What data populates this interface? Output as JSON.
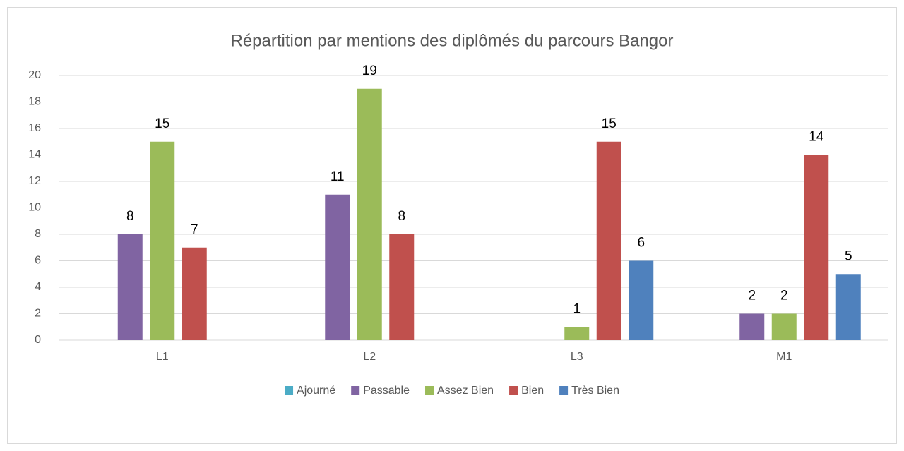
{
  "chart_data": {
    "type": "bar",
    "title": "Répartition par mentions des diplômés du parcours Bangor",
    "categories": [
      "L1",
      "L2",
      "L3",
      "M1"
    ],
    "series": [
      {
        "name": "Ajourné",
        "color": "#4bacc6",
        "values": [
          null,
          null,
          null,
          null
        ]
      },
      {
        "name": "Passable",
        "color": "#8064a2",
        "values": [
          8,
          11,
          null,
          2
        ]
      },
      {
        "name": "Assez Bien",
        "color": "#9bbb59",
        "values": [
          15,
          19,
          1,
          2
        ]
      },
      {
        "name": "Bien",
        "color": "#c0504d",
        "values": [
          7,
          8,
          15,
          14
        ]
      },
      {
        "name": "Très Bien",
        "color": "#4f81bd",
        "values": [
          null,
          null,
          6,
          5
        ]
      }
    ],
    "ylim": [
      0,
      20
    ],
    "yticks": [
      0,
      2,
      4,
      6,
      8,
      10,
      12,
      14,
      16,
      18,
      20
    ],
    "grid": true,
    "legend": "bottom"
  }
}
